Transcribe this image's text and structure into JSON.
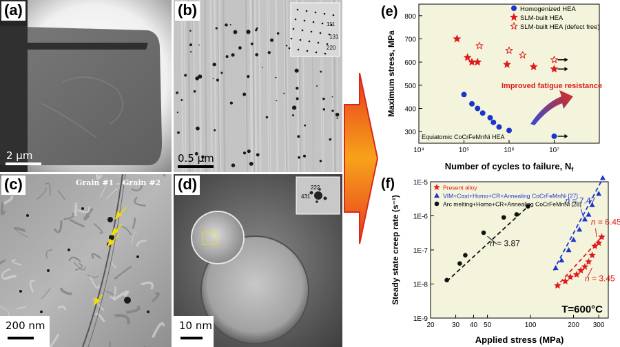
{
  "panels": {
    "a": {
      "label": "(a)",
      "scale": "2 μm"
    },
    "b": {
      "label": "(b)",
      "scale": "0.5 μm",
      "saed_labels": [
        "111",
        "131",
        "220"
      ]
    },
    "c": {
      "label": "(c)",
      "scale": "200 nm",
      "grain1": "Grain #1",
      "grain2": "Grain #2"
    },
    "d": {
      "label": "(d)",
      "scale": "10 nm",
      "fft_labels": [
        "222",
        "431"
      ]
    },
    "e": {
      "label": "(e)"
    },
    "f": {
      "label": "(f)"
    }
  },
  "colors": {
    "blue": "#1b34cc",
    "red": "#e01a1a",
    "arrow_red": "#e83a1e",
    "arrow_orange": "#f7a21a",
    "bg_e": "#f4f4dc",
    "bg_f": "#f4f4dc"
  },
  "chart_data": [
    {
      "type": "scatter",
      "panel": "e",
      "xlabel": "Number of cycles to failure, N",
      "xlabel_sub": "f",
      "ylabel": "Maximum stress, MPa",
      "xscale": "log",
      "xlim": [
        10000,
        100000000
      ],
      "ylim": [
        250,
        850
      ],
      "xticks": [
        "10⁴",
        "10⁵",
        "10⁶",
        "10⁷"
      ],
      "yticks": [
        "300",
        "400",
        "500",
        "600",
        "700",
        "800"
      ],
      "legend_position": "top-right",
      "series": [
        {
          "name": "Homogenized HEA",
          "marker": "filled-circle",
          "color": "#1b34cc",
          "points": [
            [
              100000,
              460
            ],
            [
              150000,
              420
            ],
            [
              200000,
              400
            ],
            [
              260000,
              380
            ],
            [
              380000,
              360
            ],
            [
              450000,
              340
            ],
            [
              600000,
              320
            ],
            [
              1000000,
              305
            ],
            [
              10000000,
              280
            ]
          ]
        },
        {
          "name": "SLM-built HEA",
          "marker": "filled-star",
          "color": "#e01a1a",
          "points": [
            [
              70000,
              700
            ],
            [
              120000,
              620
            ],
            [
              150000,
              600
            ],
            [
              200000,
              600
            ],
            [
              900000,
              590
            ],
            [
              3500000,
              580
            ],
            [
              10000000,
              570
            ]
          ]
        },
        {
          "name": "SLM-built HEA (defect free)",
          "marker": "open-star",
          "color": "#e01a1a",
          "points": [
            [
              220000,
              670
            ],
            [
              1000000,
              650
            ],
            [
              2000000,
              630
            ],
            [
              10000000,
              610
            ]
          ]
        }
      ],
      "runouts": [
        [
          10000000,
          280
        ],
        [
          10000000,
          570
        ],
        [
          10000000,
          610
        ]
      ],
      "annotation": "Improved fatigue resistance",
      "footnote": "Equiatomic CoCrFeMnNi HEA"
    },
    {
      "type": "scatter",
      "panel": "f",
      "xlabel": "Applied stress (MPa)",
      "ylabel": "Steady state creep rate (s⁻¹)",
      "xscale": "log",
      "yscale": "log",
      "xlim": [
        20,
        350
      ],
      "ylim": [
        1e-09,
        1e-05
      ],
      "xticks": [
        "20",
        "30",
        "40",
        "50",
        "100",
        "200",
        "300"
      ],
      "yticks": [
        "1E-9",
        "1E-8",
        "1E-7",
        "1E-6",
        "1E-5"
      ],
      "legend_position": "top-left",
      "series": [
        {
          "name": "Present alloy",
          "marker": "filled-star",
          "color": "#e01a1a",
          "points": [
            [
              155,
              9e-09
            ],
            [
              175,
              1.2e-08
            ],
            [
              190,
              1.6e-08
            ],
            [
              210,
              1.9e-08
            ],
            [
              225,
              2.5e-08
            ],
            [
              240,
              3.2e-08
            ],
            [
              255,
              4.5e-08
            ],
            [
              270,
              7e-08
            ],
            [
              282,
              1.3e-07
            ],
            [
              300,
              1.6e-07
            ],
            [
              315,
              2.4e-07
            ]
          ]
        },
        {
          "name": "VIM+Cast+Homo+CR+Annealing CoCrFeMnNi [27]",
          "marker": "filled-triangle",
          "color": "#1b34cc",
          "points": [
            [
              150,
              3e-08
            ],
            [
              165,
              5e-08
            ],
            [
              185,
              1e-07
            ],
            [
              200,
              2e-07
            ],
            [
              220,
              4e-07
            ],
            [
              240,
              8e-07
            ],
            [
              255,
              1.1e-06
            ],
            [
              270,
              2.1e-06
            ],
            [
              300,
              4.5e-06
            ],
            [
              320,
              1.3e-05
            ]
          ]
        },
        {
          "name": "Arc melting+Homo+CR+Annealing CoCrFeMnNi [28]",
          "marker": "filled-circle",
          "color": "#111111",
          "points": [
            [
              26,
              1.3e-08
            ],
            [
              32,
              4e-08
            ],
            [
              35,
              7e-08
            ],
            [
              47,
              3.2e-07
            ],
            [
              65,
              9e-07
            ],
            [
              80,
              1.1e-06
            ],
            [
              96,
              1.9e-06
            ]
          ]
        }
      ],
      "fits": [
        {
          "series": 0,
          "label": "n = 3.45",
          "n": "3.45"
        },
        {
          "series": 1,
          "label": "n = 7.47",
          "n": "7.47"
        },
        {
          "series": 1,
          "label": "n = 6.45",
          "n": "6.45"
        },
        {
          "series": 2,
          "label": "n = 3.87",
          "n": "3.87"
        }
      ],
      "condition": "T=600°C"
    }
  ]
}
